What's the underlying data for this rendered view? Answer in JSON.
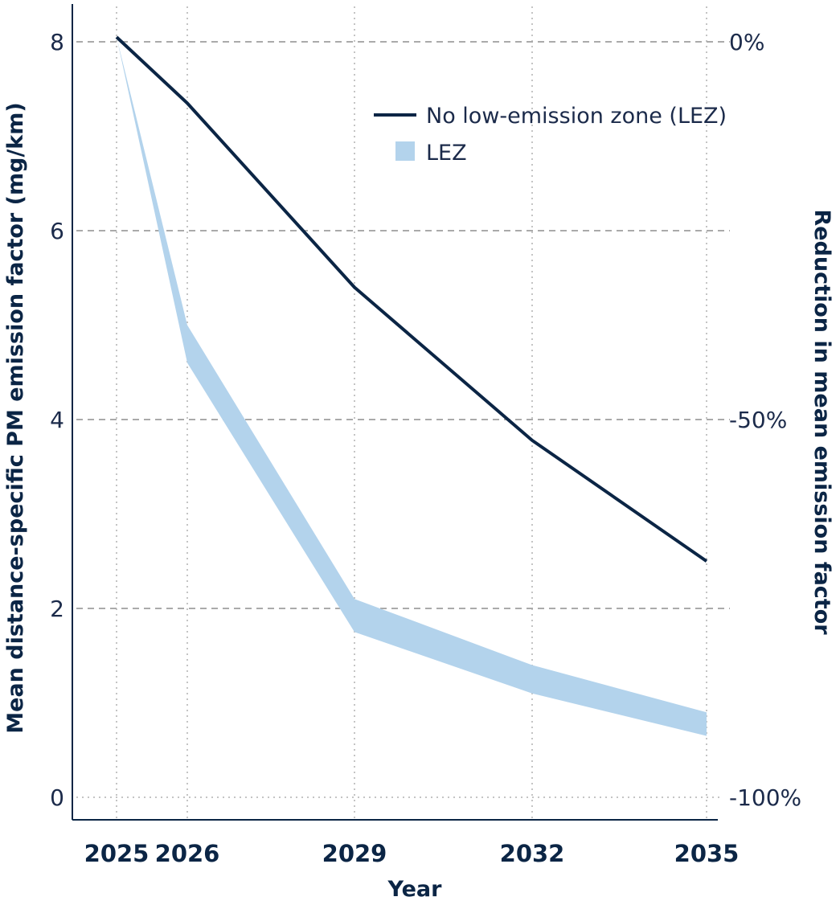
{
  "chart_data": {
    "type": "line",
    "x": [
      2025,
      2026,
      2029,
      2032,
      2035
    ],
    "x_tick_labels": [
      "2025",
      "2026",
      "2029",
      "2032",
      "2035"
    ],
    "xlabel": "Year",
    "ylabel": "Mean distance-specific PM emission factor (mg/km)",
    "ylim": [
      0,
      8
    ],
    "y_ticks": [
      0,
      2,
      4,
      6,
      8
    ],
    "y2label": "Reduction in mean emission factor",
    "y2_ticks": [
      {
        "value": 8,
        "label": "0%"
      },
      {
        "value": 4,
        "label": "-50%"
      },
      {
        "value": 0,
        "label": "-100%"
      }
    ],
    "horizontal_dashed_grid_at": [
      2,
      4,
      6,
      8
    ],
    "vertical_dotted_grid": true,
    "series": [
      {
        "name": "No low-emission zone (LEZ)",
        "kind": "line",
        "color": "#0b2545",
        "values": [
          8.05,
          7.35,
          5.4,
          3.78,
          2.5
        ]
      },
      {
        "name": "LEZ",
        "kind": "band",
        "color": "#b3d3ec",
        "upper": [
          8.05,
          5.0,
          2.1,
          1.4,
          0.9
        ],
        "lower": [
          8.05,
          4.6,
          1.75,
          1.1,
          0.65
        ]
      }
    ],
    "legend_position": "top-right"
  }
}
